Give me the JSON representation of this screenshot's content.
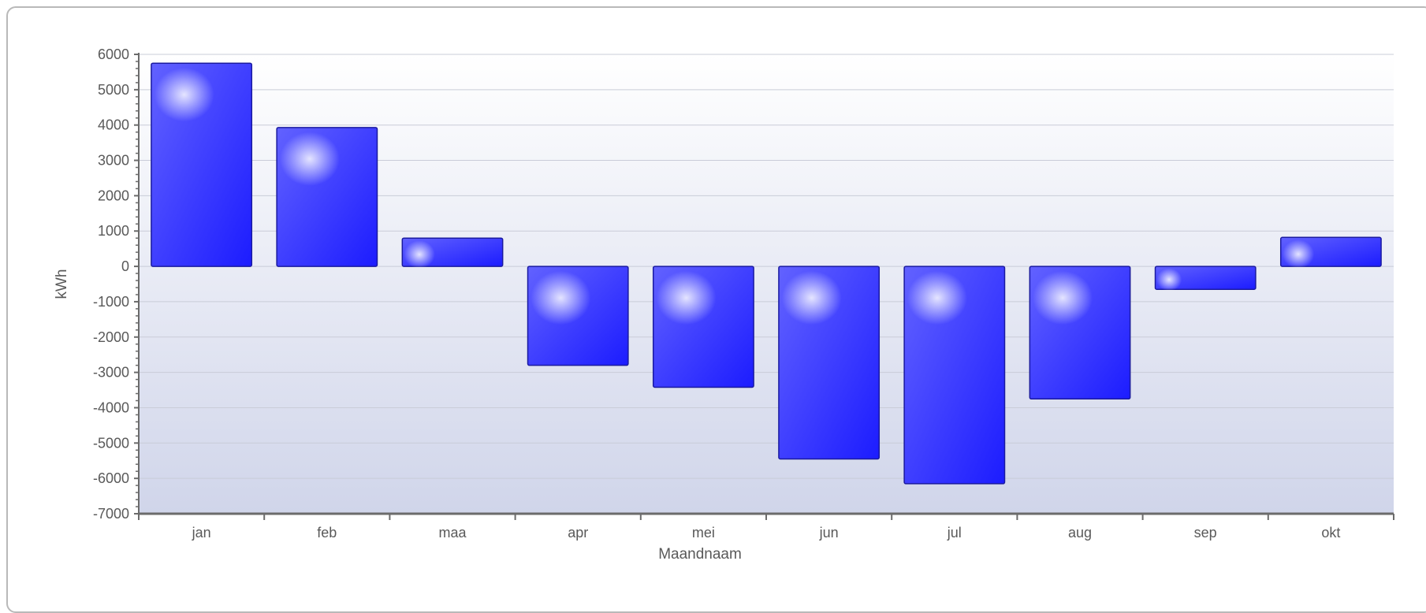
{
  "chart_data": {
    "type": "bar",
    "title": "",
    "xlabel": "Maandnaam",
    "ylabel": "kWh",
    "ylim": [
      -7000,
      6000
    ],
    "ytick_step": 1000,
    "yticks": [
      "6000",
      "5000",
      "4000",
      "3000",
      "2000",
      "1000",
      "0",
      "-1000",
      "-2000",
      "-3000",
      "-4000",
      "-5000",
      "-6000",
      "-7000"
    ],
    "categories": [
      "jan",
      "feb",
      "maa",
      "apr",
      "mei",
      "jun",
      "jul",
      "aug",
      "sep",
      "okt"
    ],
    "values": [
      5750,
      3930,
      800,
      -2800,
      -3420,
      -5450,
      -6150,
      -3750,
      -650,
      820
    ],
    "grid": true,
    "legend": "none",
    "colors": {
      "bar": "#2a2aff",
      "bar_light": "#6060ff",
      "bar_border": "#1a1aa0",
      "background_top": "#ffffff",
      "background_bottom": "#d0d5ea",
      "gridline": "#c9ccd8",
      "axis": "#6b6b6b"
    }
  }
}
